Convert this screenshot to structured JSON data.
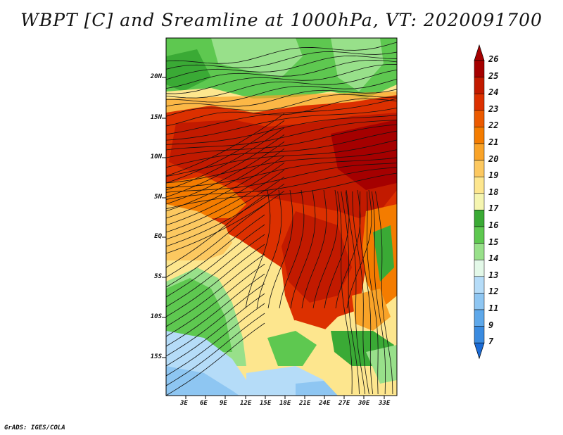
{
  "title": "WBPT [C] and Sreamline at 1000hPa, VT: 2020091700",
  "footer": "GrADS: IGES/COLA",
  "map": {
    "lat_ticks": [
      "20N",
      "15N",
      "10N",
      "5N",
      "EQ",
      "5S",
      "10S",
      "15S"
    ],
    "lon_ticks": [
      "3E",
      "6E",
      "9E",
      "12E",
      "15E",
      "18E",
      "21E",
      "24E",
      "27E",
      "30E",
      "33E"
    ]
  },
  "colorbar": {
    "labels": [
      "26",
      "25",
      "24",
      "23",
      "22",
      "21",
      "20",
      "19",
      "18",
      "17",
      "16",
      "15",
      "14",
      "13",
      "12",
      "11",
      "9",
      "7"
    ],
    "colors": [
      "#a50000",
      "#c21a00",
      "#dc3000",
      "#eb5a00",
      "#f47c00",
      "#f9a328",
      "#fcc860",
      "#fde68e",
      "#f5f5b0",
      "#3aaa35",
      "#5ec850",
      "#98e08a",
      "#e3f8e8",
      "#b5dcf8",
      "#8ec6f2",
      "#5ea8ea",
      "#3a8be0",
      "#1b6bd6"
    ],
    "top_color": "#a50000",
    "bottom_color": "#1b6bd6"
  }
}
